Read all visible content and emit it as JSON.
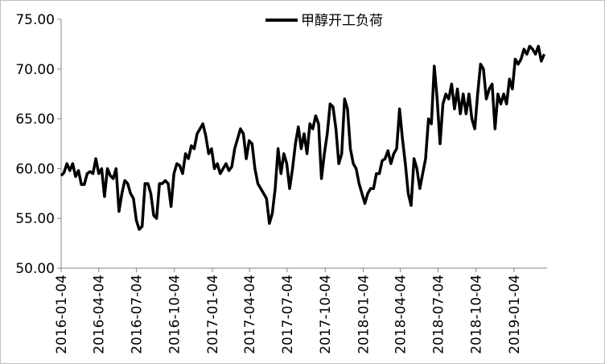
{
  "chart_data": {
    "type": "line",
    "x": [
      "2016-01-04",
      "2016-01-11",
      "2016-01-18",
      "2016-01-25",
      "2016-02-01",
      "2016-02-08",
      "2016-02-15",
      "2016-02-22",
      "2016-02-29",
      "2016-03-07",
      "2016-03-14",
      "2016-03-21",
      "2016-03-28",
      "2016-04-04",
      "2016-04-11",
      "2016-04-18",
      "2016-04-25",
      "2016-05-02",
      "2016-05-09",
      "2016-05-16",
      "2016-05-23",
      "2016-05-30",
      "2016-06-06",
      "2016-06-13",
      "2016-06-20",
      "2016-06-27",
      "2016-07-04",
      "2016-07-11",
      "2016-07-18",
      "2016-07-25",
      "2016-08-01",
      "2016-08-08",
      "2016-08-15",
      "2016-08-22",
      "2016-08-29",
      "2016-09-05",
      "2016-09-12",
      "2016-09-19",
      "2016-09-26",
      "2016-10-03",
      "2016-10-10",
      "2016-10-17",
      "2016-10-24",
      "2016-10-31",
      "2016-11-07",
      "2016-11-14",
      "2016-11-21",
      "2016-11-28",
      "2016-12-05",
      "2016-12-12",
      "2016-12-19",
      "2016-12-26",
      "2017-01-02",
      "2017-01-09",
      "2017-01-16",
      "2017-01-23",
      "2017-01-30",
      "2017-02-06",
      "2017-02-13",
      "2017-02-20",
      "2017-02-27",
      "2017-03-06",
      "2017-03-13",
      "2017-03-20",
      "2017-03-27",
      "2017-04-03",
      "2017-04-10",
      "2017-04-17",
      "2017-04-24",
      "2017-05-01",
      "2017-05-08",
      "2017-05-15",
      "2017-05-22",
      "2017-05-29",
      "2017-06-05",
      "2017-06-12",
      "2017-06-19",
      "2017-06-26",
      "2017-07-03",
      "2017-07-10",
      "2017-07-17",
      "2017-07-24",
      "2017-07-31",
      "2017-08-07",
      "2017-08-14",
      "2017-08-21",
      "2017-08-28",
      "2017-09-04",
      "2017-09-11",
      "2017-09-18",
      "2017-09-25",
      "2017-10-02",
      "2017-10-09",
      "2017-10-16",
      "2017-10-23",
      "2017-10-30",
      "2017-11-06",
      "2017-11-13",
      "2017-11-20",
      "2017-11-27",
      "2017-12-04",
      "2017-12-11",
      "2017-12-18",
      "2017-12-25",
      "2018-01-01",
      "2018-01-08",
      "2018-01-15",
      "2018-01-22",
      "2018-01-29",
      "2018-02-05",
      "2018-02-12",
      "2018-02-19",
      "2018-02-26",
      "2018-03-05",
      "2018-03-12",
      "2018-03-19",
      "2018-03-26",
      "2018-04-02",
      "2018-04-09",
      "2018-04-16",
      "2018-04-23",
      "2018-04-30",
      "2018-05-07",
      "2018-05-14",
      "2018-05-21",
      "2018-05-28",
      "2018-06-04",
      "2018-06-11",
      "2018-06-18",
      "2018-06-25",
      "2018-07-02",
      "2018-07-09",
      "2018-07-16",
      "2018-07-23",
      "2018-07-30",
      "2018-08-06",
      "2018-08-13",
      "2018-08-20",
      "2018-08-27",
      "2018-09-03",
      "2018-09-10",
      "2018-09-17",
      "2018-09-24",
      "2018-10-01",
      "2018-10-08",
      "2018-10-15",
      "2018-10-22",
      "2018-10-29",
      "2018-11-05",
      "2018-11-12",
      "2018-11-19",
      "2018-11-26",
      "2018-12-03",
      "2018-12-10",
      "2018-12-17",
      "2018-12-24",
      "2018-12-31",
      "2019-01-07",
      "2019-01-14",
      "2019-01-21",
      "2019-01-28",
      "2019-02-04",
      "2019-02-11",
      "2019-02-18",
      "2019-02-25",
      "2019-03-04",
      "2019-03-11",
      "2019-03-18"
    ],
    "series": [
      {
        "name": "甲醇开工负荷",
        "color": "#000000",
        "values": [
          59.3,
          59.6,
          60.5,
          59.8,
          60.5,
          59.2,
          59.8,
          58.4,
          58.4,
          59.5,
          59.7,
          59.5,
          61.0,
          59.5,
          60.0,
          57.2,
          60.0,
          59.3,
          59.0,
          60.0,
          55.7,
          57.5,
          58.8,
          58.5,
          57.5,
          57.0,
          54.8,
          53.9,
          54.2,
          58.5,
          58.5,
          57.5,
          55.3,
          55.0,
          58.5,
          58.5,
          58.8,
          58.5,
          56.2,
          59.5,
          60.5,
          60.3,
          59.5,
          61.5,
          61.0,
          62.3,
          62.0,
          63.5,
          64.0,
          64.5,
          63.3,
          61.5,
          62.0,
          60.0,
          60.5,
          59.5,
          60.0,
          60.5,
          59.8,
          60.2,
          62.0,
          63.0,
          64.0,
          63.5,
          61.0,
          62.8,
          62.5,
          60.0,
          58.5,
          58.0,
          57.5,
          57.0,
          54.5,
          55.5,
          58.0,
          62.0,
          59.5,
          61.5,
          60.5,
          58.0,
          60.0,
          62.5,
          64.2,
          62.0,
          63.5,
          61.5,
          64.5,
          64.0,
          65.3,
          64.5,
          59.0,
          61.5,
          63.5,
          66.5,
          66.2,
          64.0,
          60.5,
          61.5,
          67.0,
          66.0,
          62.0,
          60.5,
          60.0,
          58.5,
          57.5,
          56.5,
          57.5,
          58.0,
          58.0,
          59.5,
          59.5,
          60.8,
          61.0,
          61.8,
          60.5,
          61.5,
          62.0,
          66.0,
          63.0,
          60.5,
          57.5,
          56.3,
          61.0,
          60.0,
          58.0,
          59.5,
          61.0,
          65.0,
          64.5,
          70.3,
          67.0,
          62.5,
          66.5,
          67.5,
          67.0,
          68.5,
          66.0,
          68.0,
          65.5,
          67.5,
          65.5,
          67.5,
          65.0,
          64.0,
          67.5,
          70.5,
          70.0,
          67.0,
          68.0,
          68.5,
          64.0,
          67.5,
          66.5,
          67.5,
          66.5,
          69.0,
          68.0,
          71.0,
          70.5,
          71.0,
          72.0,
          71.5,
          72.3,
          72.0,
          71.5,
          72.3,
          70.8,
          71.5
        ]
      }
    ],
    "xlim": [
      "2016-01-04",
      "2019-03-25"
    ],
    "xticks": [
      "2016-01-04",
      "2016-04-04",
      "2016-07-04",
      "2016-10-04",
      "2017-01-04",
      "2017-04-04",
      "2017-07-04",
      "2017-10-04",
      "2018-01-04",
      "2018-04-04",
      "2018-07-04",
      "2018-10-04",
      "2019-01-04"
    ],
    "ylim": [
      50,
      75
    ],
    "yticks": [
      {
        "value": 50,
        "label": "50.00"
      },
      {
        "value": 55,
        "label": "55.00"
      },
      {
        "value": 60,
        "label": "60.00"
      },
      {
        "value": 65,
        "label": "65.00"
      },
      {
        "value": 70,
        "label": "70.00"
      },
      {
        "value": 75,
        "label": "75.00"
      }
    ],
    "legend": "top"
  }
}
